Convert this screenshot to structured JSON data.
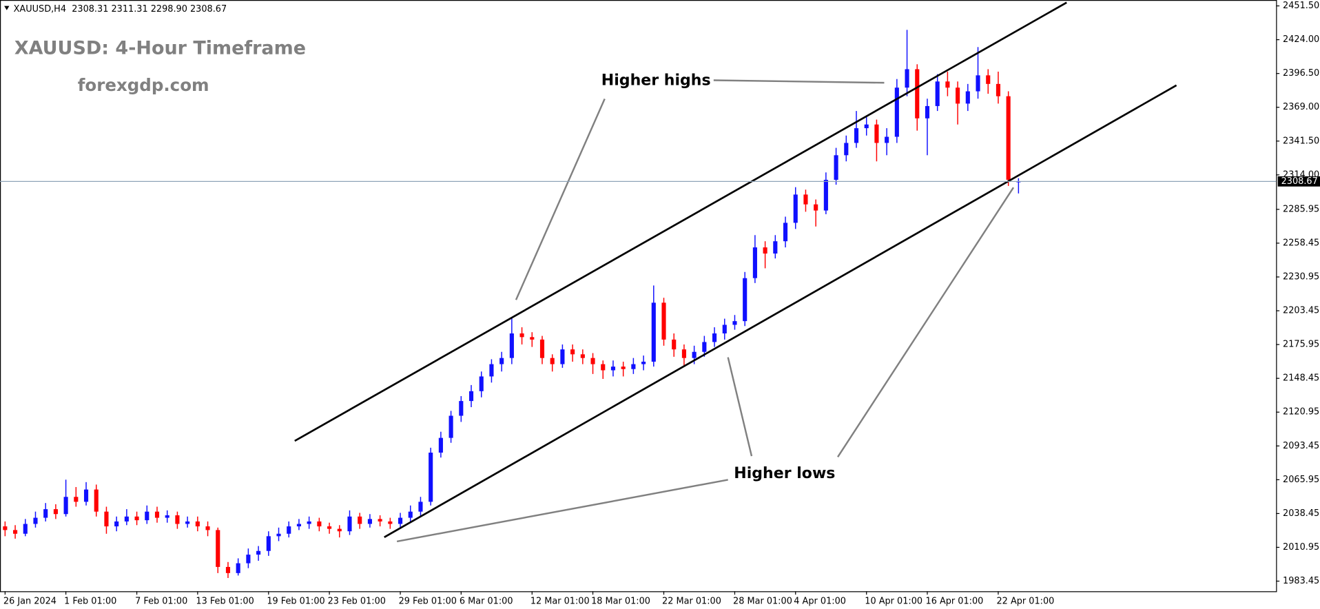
{
  "chart_data": {
    "type": "candlestick",
    "header": "XAUUSD,H4  2308.31 2311.31 2298.90 2308.67",
    "title": "XAUUSD: 4-Hour Timeframe",
    "subtitle": "forexgdp.com",
    "annotations": [
      "Higher highs",
      "Higher lows"
    ],
    "up_color": "#1010ff",
    "down_color": "#ff0000",
    "ylim": [
      1975.2,
      2456.3
    ],
    "yticks": [
      {
        "value": 1983.45,
        "label": "1983.45"
      },
      {
        "value": 2010.95,
        "label": "2010.95"
      },
      {
        "value": 2038.45,
        "label": "2038.45"
      },
      {
        "value": 2065.95,
        "label": "2065.95"
      },
      {
        "value": 2093.45,
        "label": "2093.45"
      },
      {
        "value": 2120.95,
        "label": "2120.95"
      },
      {
        "value": 2148.45,
        "label": "2148.45"
      },
      {
        "value": 2175.95,
        "label": "2175.95"
      },
      {
        "value": 2203.45,
        "label": "2203.45"
      },
      {
        "value": 2230.95,
        "label": "2230.95"
      },
      {
        "value": 2258.45,
        "label": "2258.45"
      },
      {
        "value": 2285.95,
        "label": "2285.95"
      },
      {
        "value": 2314.0,
        "label": "2314.00"
      },
      {
        "value": 2341.5,
        "label": "2341.50"
      },
      {
        "value": 2369.0,
        "label": "2369.00"
      },
      {
        "value": 2396.5,
        "label": "2396.50"
      },
      {
        "value": 2424.0,
        "label": "2424.00"
      },
      {
        "value": 2451.5,
        "label": "2451.50"
      }
    ],
    "xticks": [
      {
        "value": 0,
        "label": "26 Jan 2024"
      },
      {
        "value": 6,
        "label": "1 Feb 01:00"
      },
      {
        "value": 13,
        "label": "7 Feb 01:00"
      },
      {
        "value": 19,
        "label": "13 Feb 01:00"
      },
      {
        "value": 26,
        "label": "19 Feb 01:00"
      },
      {
        "value": 32,
        "label": "23 Feb 01:00"
      },
      {
        "value": 39,
        "label": "29 Feb 01:00"
      },
      {
        "value": 45,
        "label": "6 Mar 01:00"
      },
      {
        "value": 52,
        "label": "12 Mar 01:00"
      },
      {
        "value": 58,
        "label": "18 Mar 01:00"
      },
      {
        "value": 65,
        "label": "22 Mar 01:00"
      },
      {
        "value": 72,
        "label": "28 Mar 01:00"
      },
      {
        "value": 78,
        "label": "4 Apr 01:00"
      },
      {
        "value": 85,
        "label": "10 Apr 01:00"
      },
      {
        "value": 91,
        "label": "16 Apr 01:00"
      },
      {
        "value": 98,
        "label": "22 Apr 01:00"
      }
    ],
    "last_price": 2308.67,
    "candles": [
      [
        2028,
        2032,
        2020,
        2025
      ],
      [
        2025,
        2029,
        2018,
        2022
      ],
      [
        2022,
        2034,
        2020,
        2030
      ],
      [
        2030,
        2040,
        2027,
        2035
      ],
      [
        2035,
        2047,
        2032,
        2042
      ],
      [
        2042,
        2046,
        2034,
        2038
      ],
      [
        2038,
        2066,
        2036,
        2052
      ],
      [
        2052,
        2060,
        2044,
        2048
      ],
      [
        2048,
        2064,
        2045,
        2058
      ],
      [
        2058,
        2062,
        2036,
        2040
      ],
      [
        2040,
        2044,
        2022,
        2028
      ],
      [
        2028,
        2036,
        2024,
        2032
      ],
      [
        2032,
        2042,
        2029,
        2036
      ],
      [
        2036,
        2040,
        2029,
        2033
      ],
      [
        2033,
        2045,
        2030,
        2040
      ],
      [
        2040,
        2044,
        2031,
        2035
      ],
      [
        2035,
        2041,
        2031,
        2037
      ],
      [
        2037,
        2040,
        2026,
        2030
      ],
      [
        2030,
        2036,
        2027,
        2032
      ],
      [
        2032,
        2036,
        2024,
        2028
      ],
      [
        2028,
        2032,
        2020,
        2025
      ],
      [
        2025,
        2027,
        1990,
        1995
      ],
      [
        1995,
        1999,
        1986,
        1990
      ],
      [
        1990,
        2002,
        1988,
        1998
      ],
      [
        1998,
        2010,
        1994,
        2005
      ],
      [
        2005,
        2012,
        2000,
        2008
      ],
      [
        2008,
        2024,
        2004,
        2020
      ],
      [
        2020,
        2027,
        2016,
        2022
      ],
      [
        2022,
        2032,
        2019,
        2028
      ],
      [
        2028,
        2034,
        2025,
        2030
      ],
      [
        2030,
        2036,
        2026,
        2032
      ],
      [
        2032,
        2035,
        2024,
        2028
      ],
      [
        2028,
        2031,
        2022,
        2026
      ],
      [
        2026,
        2029,
        2019,
        2024
      ],
      [
        2024,
        2041,
        2021,
        2036
      ],
      [
        2036,
        2039,
        2026,
        2030
      ],
      [
        2030,
        2038,
        2027,
        2034
      ],
      [
        2034,
        2037,
        2028,
        2032
      ],
      [
        2032,
        2035,
        2026,
        2030
      ],
      [
        2030,
        2039,
        2027,
        2035
      ],
      [
        2035,
        2045,
        2032,
        2040
      ],
      [
        2040,
        2052,
        2036,
        2048
      ],
      [
        2048,
        2092,
        2045,
        2088
      ],
      [
        2088,
        2105,
        2084,
        2100
      ],
      [
        2100,
        2122,
        2096,
        2118
      ],
      [
        2118,
        2134,
        2113,
        2130
      ],
      [
        2130,
        2143,
        2125,
        2138
      ],
      [
        2138,
        2154,
        2133,
        2150
      ],
      [
        2150,
        2164,
        2145,
        2160
      ],
      [
        2160,
        2170,
        2154,
        2165
      ],
      [
        2165,
        2198,
        2160,
        2185
      ],
      [
        2185,
        2190,
        2176,
        2182
      ],
      [
        2182,
        2186,
        2174,
        2180
      ],
      [
        2180,
        2183,
        2160,
        2165
      ],
      [
        2165,
        2168,
        2154,
        2160
      ],
      [
        2160,
        2176,
        2157,
        2172
      ],
      [
        2172,
        2176,
        2162,
        2168
      ],
      [
        2168,
        2172,
        2160,
        2165
      ],
      [
        2165,
        2169,
        2152,
        2160
      ],
      [
        2160,
        2163,
        2148,
        2155
      ],
      [
        2155,
        2163,
        2150,
        2158
      ],
      [
        2158,
        2162,
        2150,
        2156
      ],
      [
        2156,
        2165,
        2152,
        2160
      ],
      [
        2160,
        2167,
        2155,
        2162
      ],
      [
        2162,
        2224,
        2158,
        2210
      ],
      [
        2210,
        2214,
        2175,
        2180
      ],
      [
        2180,
        2185,
        2166,
        2172
      ],
      [
        2172,
        2176,
        2158,
        2165
      ],
      [
        2165,
        2175,
        2160,
        2170
      ],
      [
        2170,
        2183,
        2166,
        2178
      ],
      [
        2178,
        2190,
        2174,
        2185
      ],
      [
        2185,
        2197,
        2180,
        2192
      ],
      [
        2192,
        2200,
        2188,
        2195
      ],
      [
        2195,
        2235,
        2191,
        2230
      ],
      [
        2230,
        2265,
        2226,
        2255
      ],
      [
        2255,
        2260,
        2238,
        2250
      ],
      [
        2250,
        2265,
        2246,
        2260
      ],
      [
        2260,
        2280,
        2255,
        2275
      ],
      [
        2275,
        2304,
        2270,
        2298
      ],
      [
        2298,
        2302,
        2284,
        2290
      ],
      [
        2290,
        2294,
        2272,
        2285
      ],
      [
        2285,
        2316,
        2282,
        2310
      ],
      [
        2310,
        2336,
        2306,
        2330
      ],
      [
        2330,
        2346,
        2325,
        2340
      ],
      [
        2340,
        2366,
        2336,
        2352
      ],
      [
        2352,
        2362,
        2346,
        2355
      ],
      [
        2355,
        2359,
        2325,
        2340
      ],
      [
        2340,
        2352,
        2330,
        2345
      ],
      [
        2345,
        2392,
        2340,
        2385
      ],
      [
        2385,
        2432,
        2378,
        2400
      ],
      [
        2400,
        2404,
        2350,
        2360
      ],
      [
        2360,
        2376,
        2330,
        2370
      ],
      [
        2370,
        2396,
        2366,
        2390
      ],
      [
        2390,
        2398,
        2378,
        2385
      ],
      [
        2385,
        2390,
        2355,
        2372
      ],
      [
        2372,
        2388,
        2366,
        2382
      ],
      [
        2382,
        2418,
        2376,
        2395
      ],
      [
        2395,
        2400,
        2380,
        2388
      ],
      [
        2388,
        2398,
        2372,
        2378
      ],
      [
        2378,
        2382,
        2305,
        2310
      ],
      [
        2308.31,
        2311.31,
        2298.9,
        2308.67
      ]
    ]
  }
}
